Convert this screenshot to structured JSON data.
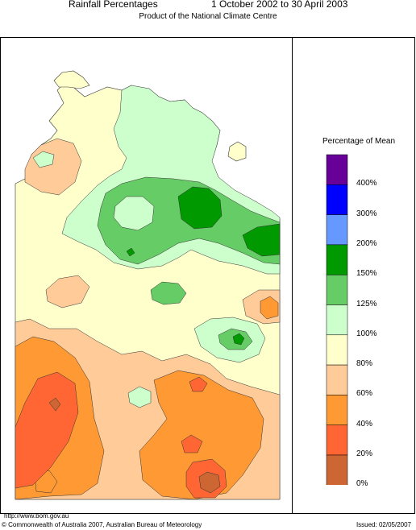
{
  "header": {
    "title": "Rainfall Percentages",
    "period": "1 October 2002 to 30 April 2003",
    "subtitle": "Product of the National Climate Centre"
  },
  "legend": {
    "title": "Percentage of Mean",
    "bins": [
      {
        "color": "#660099"
      },
      {
        "color": "#0000ff"
      },
      {
        "color": "#6699ff"
      },
      {
        "color": "#009900"
      },
      {
        "color": "#66cc66"
      },
      {
        "color": "#ccffcc"
      },
      {
        "color": "#ffffcc"
      },
      {
        "color": "#ffcc99"
      },
      {
        "color": "#ff9933"
      },
      {
        "color": "#ff6633"
      },
      {
        "color": "#cc6633"
      }
    ],
    "labels": [
      "400%",
      "300%",
      "200%",
      "150%",
      "125%",
      "100%",
      "80%",
      "60%",
      "40%",
      "20%",
      "0%"
    ]
  },
  "footer": {
    "url": "http://www.bom.gov.au",
    "copyright": "© Commonwealth of Australia 2007, Australian Bureau of Meteorology",
    "issued": "Issued: 02/05/2007"
  }
}
